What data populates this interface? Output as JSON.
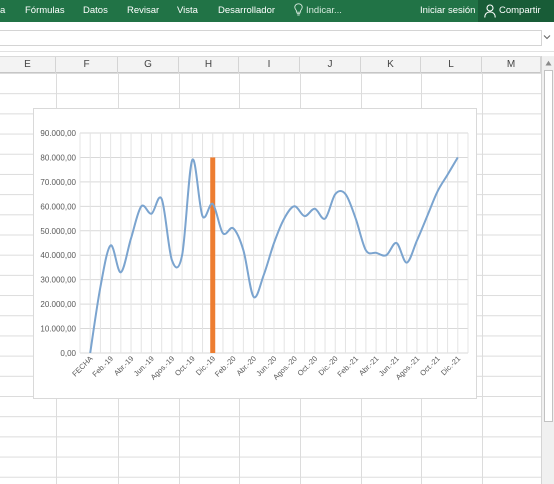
{
  "ribbon": {
    "tabs": [
      {
        "label": "a"
      },
      {
        "label": "Fórmulas"
      },
      {
        "label": "Datos"
      },
      {
        "label": "Revisar"
      },
      {
        "label": "Vista"
      },
      {
        "label": "Desarrollador"
      }
    ],
    "tell_me": "Indicar...",
    "sign_in": "Iniciar sesión",
    "share": "Compartir",
    "bg_color": "#217346"
  },
  "columns": [
    "E",
    "F",
    "G",
    "H",
    "I",
    "J",
    "K",
    "L",
    "M"
  ],
  "chart_data": {
    "type": "line",
    "y_ticks": [
      "90.000,00",
      "80.000,00",
      "70.000,00",
      "60.000,00",
      "50.000,00",
      "40.000,00",
      "30.000,00",
      "20.000,00",
      "10.000,00",
      "0,00"
    ],
    "ylim": [
      0,
      90000
    ],
    "grid": true,
    "line_color": "#7ba4cf",
    "marker_color": "#ed7d31",
    "marker_category": "Dic.-19",
    "categories": [
      "FECHA",
      "Feb.-19",
      "Abr.-19",
      "Jun.-19",
      "Agos.-19",
      "Oct.-19",
      "Dic.-19",
      "Feb.-20",
      "Abr.-20",
      "Jun.-20",
      "Agos.-20",
      "Oct.-20",
      "Dic.-20",
      "Feb.-21",
      "Abr.-21",
      "Jun.-21",
      "Agos.-21",
      "Oct.-21",
      "Dic.-21"
    ],
    "series": [
      {
        "x": [
          0,
          0.5,
          1,
          1.5,
          2,
          2.5,
          3,
          3.5,
          4,
          4.5,
          5,
          5.5,
          6,
          6.5,
          7,
          7.5,
          8,
          8.5,
          9,
          9.5,
          10,
          10.5,
          11,
          11.5,
          12,
          12.5,
          13,
          13.5,
          14,
          14.5,
          15,
          15.5,
          16,
          16.5,
          17,
          17.5,
          18
        ],
        "values": [
          0,
          27000,
          44000,
          33000,
          47000,
          60000,
          57000,
          63000,
          38000,
          40000,
          79000,
          56000,
          61000,
          49000,
          51000,
          42000,
          23000,
          32000,
          45000,
          55000,
          60000,
          56000,
          59000,
          55000,
          65000,
          65000,
          55000,
          42000,
          41000,
          40000,
          45000,
          37000,
          46000,
          56000,
          66000,
          73000,
          80000
        ]
      }
    ]
  }
}
